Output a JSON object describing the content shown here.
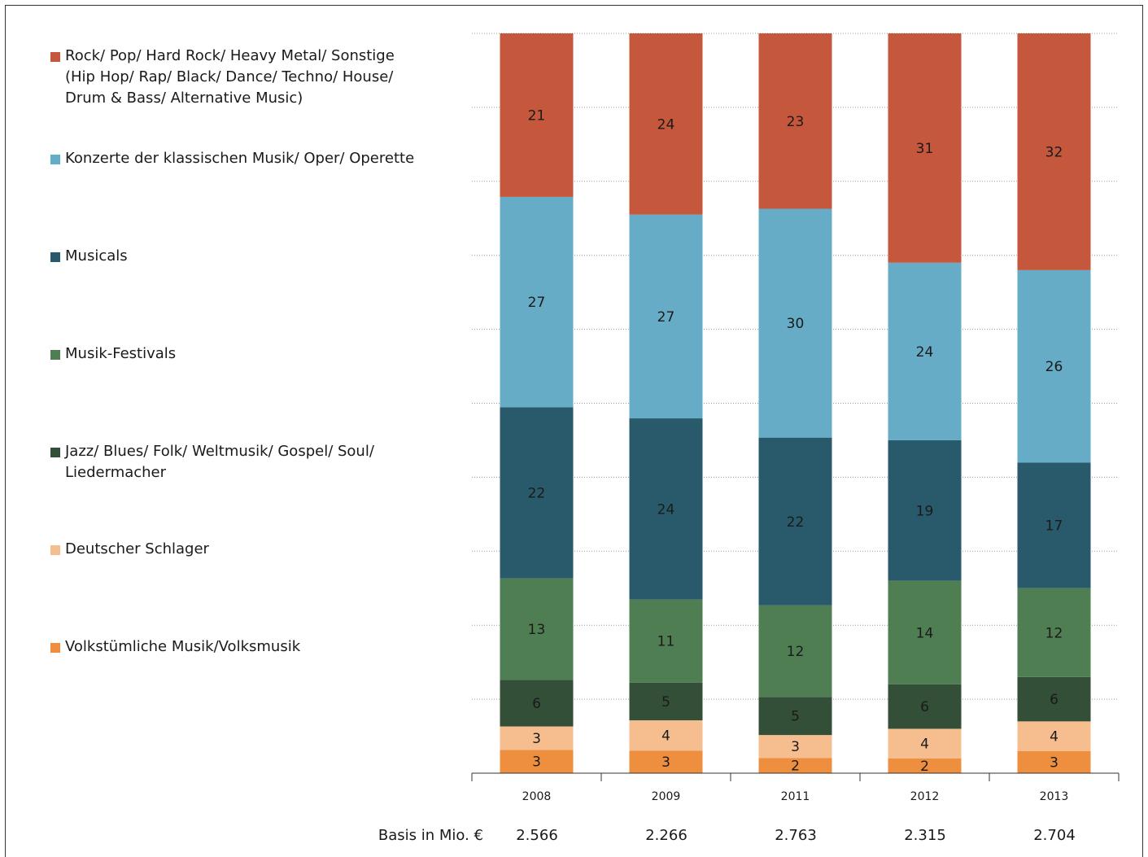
{
  "chart_data": {
    "type": "bar",
    "stacked": true,
    "categories": [
      "2008",
      "2009",
      "2011",
      "2012",
      "2013"
    ],
    "series": [
      {
        "name": "Volkstümliche Musik/Volksmusik",
        "color": "#ee8f3f",
        "values": [
          3,
          3,
          2,
          2,
          3
        ]
      },
      {
        "name": "Deutscher Schlager",
        "color": "#f6bd8f",
        "values": [
          3,
          4,
          3,
          4,
          4
        ]
      },
      {
        "name": "Jazz/ Blues/ Folk/ Weltmusik/ Gospel/ Soul/\nLiedermacher",
        "color": "#344f38",
        "values": [
          6,
          5,
          5,
          6,
          6
        ]
      },
      {
        "name": "Musik-Festivals",
        "color": "#4f7e53",
        "values": [
          13,
          11,
          12,
          14,
          12
        ]
      },
      {
        "name": "Musicals",
        "color": "#295a6b",
        "values": [
          22,
          24,
          22,
          19,
          17
        ]
      },
      {
        "name": "Konzerte der klassischen Musik/ Oper/ Operette",
        "color": "#66acc6",
        "values": [
          27,
          27,
          30,
          24,
          26
        ]
      },
      {
        "name": "Rock/ Pop/ Hard Rock/ Heavy Metal/ Sonstige\n(Hip Hop/ Rap/ Black/ Dance/ Techno/ House/\nDrum & Bass/ Alternative Music)",
        "color": "#c5573c",
        "values": [
          21,
          24,
          23,
          31,
          32
        ]
      }
    ],
    "ylim": [
      0,
      100
    ],
    "grid": true,
    "legend_position": "left"
  },
  "basis": {
    "label": "Basis in Mio. €",
    "values": [
      "2.566",
      "2.266",
      "2.763",
      "2.315",
      "2.704"
    ]
  }
}
